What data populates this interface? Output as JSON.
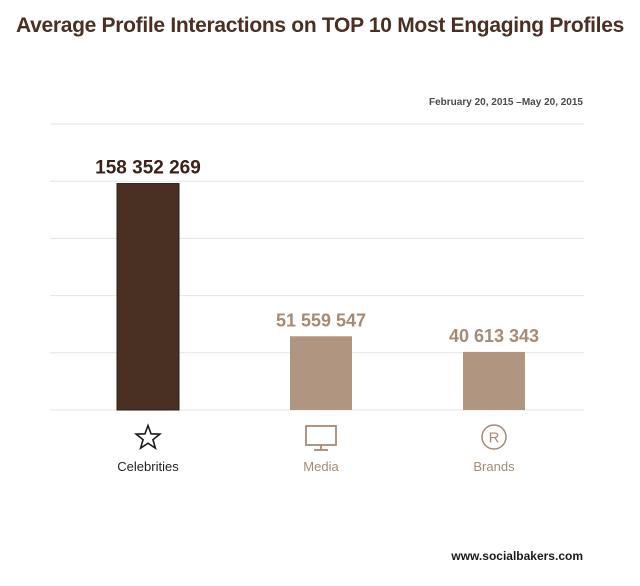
{
  "title": "Average Profile Interactions on TOP 10 Most Engaging Profiles",
  "date_range": "February 20, 2015 –May 20, 2015",
  "source": "www.socialbakers.com",
  "colors": {
    "highlight": "#4a3022",
    "bar": "#b09680",
    "highlight_label": "#3a2218",
    "label": "#a58b74",
    "grid": "#e4e4e4"
  },
  "chart_data": {
    "type": "bar",
    "title": "Average Profile Interactions on TOP 10 Most Engaging Profiles",
    "categories": [
      "Celebrities",
      "Media",
      "Brands"
    ],
    "icons": [
      "star-icon",
      "monitor-icon",
      "registered-icon"
    ],
    "values": [
      158352269,
      51559547,
      40613343
    ],
    "value_labels": [
      "158 352 269",
      "51 559 547",
      "40 613 343"
    ],
    "highlight_index": 0,
    "ylim": [
      0,
      200000000
    ],
    "grid": true,
    "legend": "none"
  }
}
